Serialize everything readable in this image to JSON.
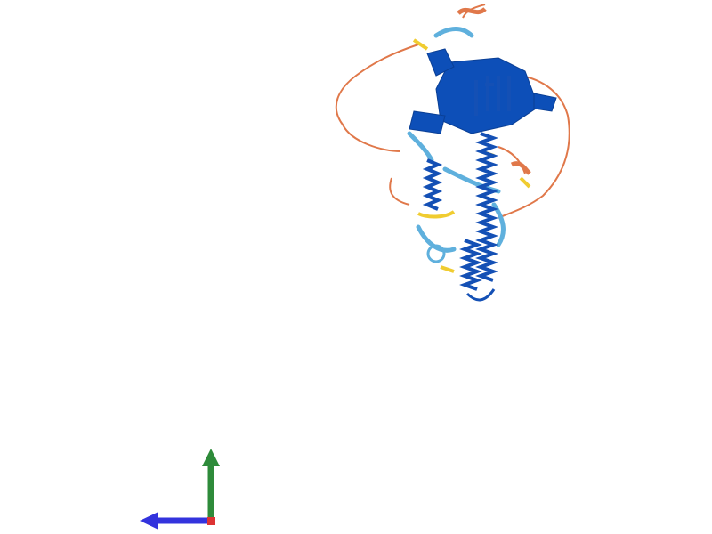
{
  "viewer": {
    "background": "#ffffff",
    "confidence_colors": {
      "very_high": "#0053d6",
      "confident": "#65cbf3",
      "low": "#ffdb13",
      "very_low": "#ff7d45"
    },
    "axes": {
      "x_color": "#3333dd",
      "y_color": "#2e8b3a",
      "z_color": "#dd3333",
      "icon": "axes-orientation-icon"
    }
  }
}
